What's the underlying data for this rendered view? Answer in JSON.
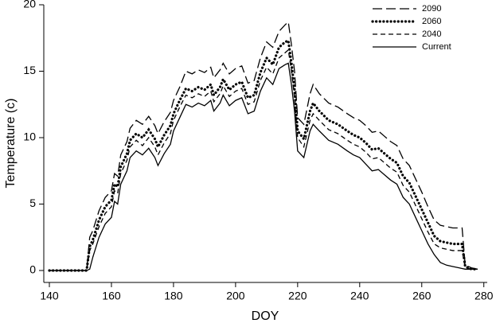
{
  "chart_data": {
    "type": "line",
    "xlabel": "DOY",
    "ylabel": "Temperature (c)",
    "xlim": [
      138.2,
      281.1
    ],
    "xticks": [
      140,
      160,
      180,
      200,
      220,
      240,
      260,
      280
    ],
    "ylim": [
      -0.9,
      20
    ],
    "yticks": [
      0,
      5,
      10,
      15,
      20
    ],
    "legend": "upper right",
    "x": [
      140,
      145,
      150,
      152,
      153,
      154,
      156,
      158,
      160,
      161,
      162,
      163,
      165,
      166,
      168,
      170,
      172,
      174,
      175,
      177,
      179,
      180,
      182,
      184,
      186,
      188,
      190,
      192,
      193,
      195,
      196,
      198,
      200,
      202,
      204,
      206,
      208,
      210,
      212,
      214,
      216,
      217,
      218,
      219,
      220,
      222,
      224,
      225,
      227,
      230,
      233,
      236,
      238,
      240,
      242,
      244,
      246,
      248,
      250,
      252,
      254,
      256,
      258,
      260,
      262,
      264,
      266,
      268,
      270,
      272,
      273,
      274,
      276,
      278
    ],
    "series": [
      {
        "name": "2090",
        "color": "#000000",
        "linestyle": "longdash",
        "values": [
          0,
          0,
          0,
          0,
          2.5,
          3.0,
          4.5,
          5.5,
          6.0,
          7.3,
          7.1,
          8.7,
          9.7,
          10.7,
          11.3,
          11.0,
          11.6,
          10.9,
          10.3,
          11.2,
          11.9,
          12.8,
          13.8,
          15.0,
          14.8,
          15.1,
          14.9,
          15.3,
          14.5,
          15.1,
          15.6,
          14.8,
          15.2,
          15.4,
          14.1,
          14.3,
          16.0,
          17.2,
          16.8,
          18.0,
          18.5,
          18.7,
          17.0,
          15.0,
          11.5,
          11.0,
          13.3,
          14.0,
          13.3,
          12.6,
          12.3,
          11.8,
          11.5,
          11.3,
          10.9,
          10.4,
          10.5,
          10.1,
          9.7,
          9.4,
          8.4,
          7.9,
          6.9,
          5.9,
          4.8,
          3.8,
          3.4,
          3.3,
          3.2,
          3.2,
          3.2,
          0.4,
          0.2,
          0.1
        ]
      },
      {
        "name": "2060",
        "color": "#000000",
        "linestyle": "dotted",
        "values": [
          0,
          0,
          0,
          0,
          1.8,
          2.3,
          3.8,
          4.8,
          5.3,
          6.5,
          6.3,
          7.8,
          8.8,
          9.8,
          10.3,
          10.0,
          10.6,
          9.9,
          9.3,
          10.2,
          10.9,
          11.8,
          12.8,
          13.7,
          13.5,
          13.8,
          13.6,
          14.0,
          13.2,
          13.8,
          14.4,
          13.6,
          14.0,
          14.2,
          13.0,
          13.2,
          14.9,
          16.0,
          15.5,
          16.8,
          17.2,
          17.3,
          15.6,
          13.6,
          10.5,
          9.9,
          12.0,
          12.6,
          12.0,
          11.3,
          11.0,
          10.5,
          10.2,
          10.0,
          9.6,
          9.1,
          9.2,
          8.8,
          8.4,
          8.1,
          7.1,
          6.6,
          5.6,
          4.6,
          3.6,
          2.6,
          2.2,
          2.1,
          2.0,
          2.0,
          2.0,
          0.3,
          0.1,
          0.1
        ]
      },
      {
        "name": "2040",
        "color": "#000000",
        "linestyle": "dashed",
        "values": [
          0,
          0,
          0,
          0,
          1.5,
          2.0,
          3.3,
          4.3,
          4.8,
          6.0,
          5.8,
          7.3,
          8.3,
          9.3,
          9.8,
          9.4,
          10.0,
          9.3,
          8.7,
          9.6,
          10.3,
          11.3,
          12.3,
          13.2,
          13.0,
          13.3,
          13.1,
          13.5,
          12.7,
          13.3,
          13.9,
          13.1,
          13.5,
          13.7,
          12.5,
          12.7,
          14.3,
          15.3,
          14.8,
          16.0,
          16.4,
          16.6,
          15.0,
          13.0,
          10.0,
          9.3,
          11.3,
          11.8,
          11.3,
          10.6,
          10.3,
          9.8,
          9.5,
          9.3,
          8.9,
          8.4,
          8.5,
          8.1,
          7.7,
          7.4,
          6.4,
          5.9,
          4.9,
          3.9,
          2.9,
          2.0,
          1.7,
          1.6,
          1.5,
          1.5,
          1.5,
          0.2,
          0.1,
          0.1
        ]
      },
      {
        "name": "Current",
        "color": "#000000",
        "linestyle": "solid",
        "values": [
          0,
          0,
          0,
          0,
          0.1,
          1.0,
          2.5,
          3.5,
          4.0,
          5.2,
          5.0,
          6.5,
          7.5,
          8.5,
          9.0,
          8.7,
          9.2,
          8.5,
          7.9,
          8.8,
          9.5,
          10.5,
          11.5,
          12.5,
          12.3,
          12.6,
          12.4,
          12.8,
          12.0,
          12.6,
          13.2,
          12.4,
          12.8,
          13.0,
          11.8,
          12.0,
          13.5,
          14.5,
          14.0,
          15.2,
          15.5,
          15.6,
          14.0,
          12.0,
          9.0,
          8.5,
          10.5,
          11.0,
          10.5,
          9.8,
          9.5,
          9.0,
          8.7,
          8.5,
          8.0,
          7.5,
          7.6,
          7.2,
          6.8,
          6.5,
          5.5,
          5.0,
          4.0,
          3.0,
          2.0,
          1.2,
          0.6,
          0.4,
          0.3,
          0.2,
          0.15,
          0.1,
          0.1,
          0.1
        ]
      }
    ]
  }
}
